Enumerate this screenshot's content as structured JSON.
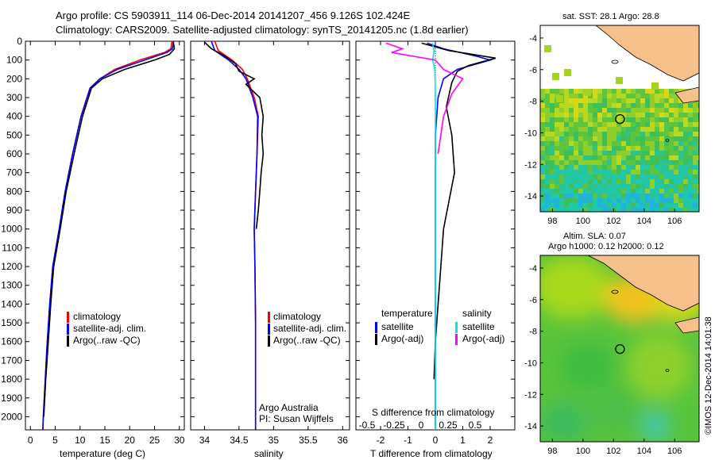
{
  "header": {
    "line1": "Argo profile: CS 5903911_114 06-Dec-2014 20141207_456 9.126S 102.424E",
    "line2": "Climatology: CARS2009. Satellite-adjusted climatology: synTS_20141205.nc (1.8d earlier)"
  },
  "colors": {
    "climatology": "#ff0000",
    "satellite": "#0000ff",
    "argo": "#000000",
    "sal_satellite": "#00e5ee",
    "sal_argo": "#ff00ff",
    "land": "#f5c08a"
  },
  "chart_data": [
    {
      "type": "line",
      "panel": "temperature",
      "xlabel": "temperature (deg C)",
      "xticks": [
        0,
        5,
        10,
        15,
        20,
        25,
        30
      ],
      "xlim": [
        -1,
        31
      ],
      "ylim": [
        2070,
        0
      ],
      "yticks": [
        0,
        100,
        200,
        300,
        400,
        500,
        600,
        700,
        800,
        900,
        1000,
        1100,
        1200,
        1300,
        1400,
        1500,
        1600,
        1700,
        1800,
        1900,
        2000
      ],
      "legend": [
        "climatology",
        "satellite-adj. clim.",
        "Argo(..raw -QC)"
      ],
      "series": [
        {
          "name": "climatology",
          "points": [
            [
              28.5,
              0
            ],
            [
              28.3,
              40
            ],
            [
              27,
              60
            ],
            [
              22,
              100
            ],
            [
              17,
              150
            ],
            [
              14,
              200
            ],
            [
              12,
              250
            ],
            [
              10.2,
              400
            ],
            [
              8.5,
              600
            ],
            [
              7,
              800
            ],
            [
              5.8,
              1000
            ],
            [
              4.5,
              1200
            ],
            [
              3.9,
              1400
            ],
            [
              3.4,
              1600
            ],
            [
              3,
              1800
            ],
            [
              2.6,
              2000
            ],
            [
              2.5,
              2070
            ]
          ]
        },
        {
          "name": "satellite-adj. clim.",
          "points": [
            [
              28.8,
              0
            ],
            [
              28.6,
              40
            ],
            [
              27.5,
              60
            ],
            [
              23,
              100
            ],
            [
              17.5,
              150
            ],
            [
              14,
              200
            ],
            [
              12,
              250
            ],
            [
              10.2,
              400
            ],
            [
              8.5,
              600
            ],
            [
              7,
              800
            ],
            [
              5.8,
              1000
            ],
            [
              4.5,
              1200
            ],
            [
              3.9,
              1400
            ],
            [
              3.4,
              1600
            ],
            [
              3,
              1800
            ],
            [
              2.6,
              2000
            ],
            [
              2.5,
              2070
            ]
          ]
        },
        {
          "name": "Argo(..raw -QC)",
          "points": [
            [
              28.8,
              5
            ],
            [
              29,
              40
            ],
            [
              28,
              70
            ],
            [
              25,
              100
            ],
            [
              19,
              150
            ],
            [
              14.5,
              200
            ],
            [
              12.3,
              250
            ],
            [
              10.5,
              400
            ],
            [
              8.8,
              600
            ],
            [
              7.2,
              800
            ],
            [
              6,
              1000
            ],
            [
              4.7,
              1200
            ],
            [
              4.1,
              1400
            ],
            [
              3.6,
              1600
            ],
            [
              3.1,
              1800
            ],
            [
              2.7,
              2000
            ]
          ]
        }
      ]
    },
    {
      "type": "line",
      "panel": "salinity",
      "xlabel": "salinity",
      "xticks": [
        34,
        34.5,
        35,
        35.5,
        36
      ],
      "xlim": [
        33.8,
        36.1
      ],
      "ylim": [
        2070,
        0
      ],
      "legend": [
        "climatology",
        "satellite-adj. clim.",
        "Argo(..raw -QC)"
      ],
      "annotation": [
        "Argo Australia",
        "PI: Susan Wijffels"
      ],
      "series": [
        {
          "name": "climatology",
          "points": [
            [
              34.15,
              0
            ],
            [
              34.2,
              50
            ],
            [
              34.4,
              100
            ],
            [
              34.55,
              150
            ],
            [
              34.62,
              200
            ],
            [
              34.72,
              300
            ],
            [
              34.78,
              400
            ],
            [
              34.76,
              600
            ],
            [
              34.74,
              800
            ],
            [
              34.72,
              1000
            ],
            [
              34.73,
              1200
            ],
            [
              34.74,
              1500
            ],
            [
              34.74,
              1800
            ],
            [
              34.74,
              2070
            ]
          ]
        },
        {
          "name": "satellite-adj. clim.",
          "points": [
            [
              34.1,
              0
            ],
            [
              34.15,
              50
            ],
            [
              34.35,
              100
            ],
            [
              34.5,
              150
            ],
            [
              34.6,
              200
            ],
            [
              34.7,
              300
            ],
            [
              34.77,
              400
            ],
            [
              34.76,
              600
            ],
            [
              34.74,
              800
            ],
            [
              34.72,
              1000
            ],
            [
              34.73,
              1200
            ],
            [
              34.74,
              1500
            ],
            [
              34.74,
              1800
            ],
            [
              34.74,
              2070
            ]
          ]
        },
        {
          "name": "Argo(..raw -QC)",
          "points": [
            [
              34.0,
              5
            ],
            [
              34.1,
              40
            ],
            [
              34.3,
              80
            ],
            [
              34.45,
              120
            ],
            [
              34.5,
              160
            ],
            [
              34.72,
              200
            ],
            [
              34.6,
              230
            ],
            [
              34.8,
              300
            ],
            [
              34.85,
              400
            ],
            [
              34.83,
              500
            ],
            [
              34.85,
              600
            ],
            [
              34.82,
              700
            ],
            [
              34.8,
              800
            ],
            [
              34.78,
              900
            ],
            [
              34.75,
              1000
            ]
          ]
        }
      ]
    },
    {
      "type": "line",
      "panel": "differences",
      "xlabel_top": "S difference from climatology",
      "xticks_top": [
        "-0.5",
        "-0.25",
        "0",
        "0.25",
        "0.5"
      ],
      "xlabel": "T difference from climatology",
      "xticks": [
        -2,
        -1,
        0,
        1,
        2
      ],
      "xlim": [
        -2.9,
        2.9
      ],
      "ylim": [
        2070,
        0
      ],
      "legend_t": {
        "title": "temperature",
        "items": [
          "satellite",
          "Argo(-adj)"
        ]
      },
      "legend_s": {
        "title": "salinity",
        "items": [
          "satellite",
          "Argo(-adj)"
        ]
      },
      "series": [
        {
          "name": "T satellite",
          "points": [
            [
              -0.3,
              10
            ],
            [
              0.3,
              40
            ],
            [
              1.5,
              80
            ],
            [
              2,
              100
            ],
            [
              0.8,
              150
            ],
            [
              0.3,
              200
            ],
            [
              0.1,
              300
            ],
            [
              0,
              500
            ],
            [
              0,
              1000
            ],
            [
              0,
              2070
            ]
          ]
        },
        {
          "name": "T Argo(-adj)",
          "points": [
            [
              -0.5,
              10
            ],
            [
              0.5,
              50
            ],
            [
              2.2,
              90
            ],
            [
              1.2,
              130
            ],
            [
              0.8,
              160
            ],
            [
              0.6,
              220
            ],
            [
              0.4,
              350
            ],
            [
              0.6,
              500
            ],
            [
              0.7,
              700
            ],
            [
              0.5,
              850
            ],
            [
              0.3,
              1000
            ],
            [
              0.2,
              1200
            ],
            [
              0,
              1600
            ],
            [
              -0.05,
              1800
            ]
          ]
        },
        {
          "name": "S satellite",
          "points": [
            [
              -0.1,
              10
            ],
            [
              -0.05,
              50
            ],
            [
              -0.1,
              100
            ],
            [
              -0.02,
              150
            ],
            [
              0,
              250
            ],
            [
              0,
              1000
            ],
            [
              0,
              2070
            ]
          ]
        },
        {
          "name": "S Argo(-adj)",
          "points": [
            [
              -1.8,
              10
            ],
            [
              -1.2,
              40
            ],
            [
              -1.6,
              60
            ],
            [
              0,
              100
            ],
            [
              0.3,
              150
            ],
            [
              1,
              200
            ],
            [
              0.6,
              280
            ],
            [
              0.3,
              400
            ],
            [
              0.1,
              600
            ]
          ]
        }
      ]
    },
    {
      "type": "heatmap",
      "panel": "SST map",
      "title": "sat. SST: 28.1  Argo: 28.8",
      "xticks": [
        98,
        100,
        102,
        104,
        106
      ],
      "yticks": [
        -4,
        -6,
        -8,
        -10,
        -12,
        -14
      ],
      "xlim": [
        97.2,
        107.6
      ],
      "ylim": [
        -15,
        -3.2
      ],
      "float_position": [
        102.42,
        -9.13
      ]
    },
    {
      "type": "heatmap",
      "panel": "SLA map",
      "title": "Altim. SLA: 0.07",
      "subtitle": "Argo h1000: 0.12  h2000: 0.12",
      "xticks": [
        98,
        100,
        102,
        104,
        106
      ],
      "yticks": [
        -4,
        -6,
        -8,
        -10,
        -12,
        -14
      ],
      "xlim": [
        97.2,
        107.6
      ],
      "ylim": [
        -15,
        -3.2
      ],
      "float_position": [
        102.42,
        -9.13
      ]
    }
  ],
  "footer": "©IMOS 12-Dec-2014 14:01:38"
}
